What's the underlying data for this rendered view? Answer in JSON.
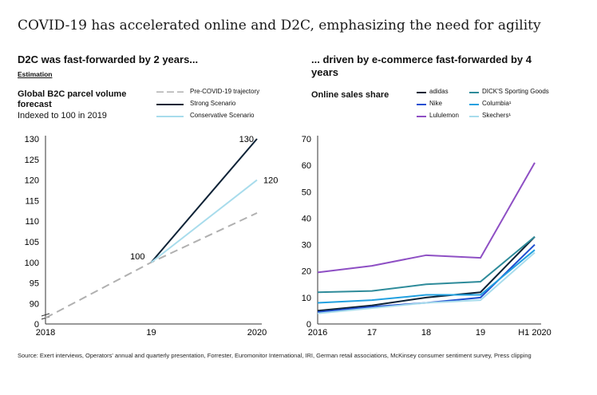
{
  "title": "COVID-19 has accelerated online and D2C, emphasizing the need for agility",
  "source": "Source: Exert interviews, Operators' annual and quarterly presentation, Forrester, Euromonitor International, IRI, German retail associations, McKinsey consumer sentiment survey, Press clipping",
  "left": {
    "heading": "D2C was fast-forwarded by 2 years...",
    "estimation": "Estimation",
    "chart_title": "Global B2C parcel volume forecast",
    "chart_note": "Indexed to 100 in 2019",
    "legend": [
      {
        "label": "Pre-COVID-19 trajectory",
        "color": "#b0b0b0",
        "style": "dashed"
      },
      {
        "label": "Strong Scenario",
        "color": "#0d2236",
        "style": "solid"
      },
      {
        "label": "Conservative Scenario",
        "color": "#a8dcec",
        "style": "solid"
      }
    ]
  },
  "right": {
    "heading": "... driven by e-commerce fast-forwarded by 4 years",
    "chart_title": "Online sales share",
    "legend": [
      {
        "label": "adidas",
        "color": "#0d2236"
      },
      {
        "label": "DICK'S Sporting Goods",
        "color": "#2e8b9a"
      },
      {
        "label": "Nike",
        "color": "#1f4fd1"
      },
      {
        "label": "Columbia¹",
        "color": "#21a0e0"
      },
      {
        "label": "Lululemon",
        "color": "#8e4fc4"
      },
      {
        "label": "Skechers¹",
        "color": "#a8dcec"
      }
    ]
  },
  "chart_data": [
    {
      "type": "line",
      "title": "Global B2C parcel volume forecast",
      "subtitle": "Indexed to 100 in 2019",
      "x": [
        "2018",
        "19",
        "2020"
      ],
      "y_ticks": [
        0,
        90,
        95,
        100,
        105,
        110,
        115,
        120,
        125,
        130
      ],
      "axis_break": true,
      "ylim": [
        86,
        130
      ],
      "series": [
        {
          "name": "Pre-COVID-19 trajectory",
          "values": [
            86.5,
            100,
            112
          ],
          "color": "#b0b0b0",
          "dash": true
        },
        {
          "name": "Strong Scenario",
          "values": [
            null,
            100,
            130
          ],
          "color": "#0d2236"
        },
        {
          "name": "Conservative Scenario",
          "values": [
            null,
            100,
            120
          ],
          "color": "#a8dcec"
        }
      ],
      "data_labels": [
        {
          "text": "100",
          "x": "19",
          "y": 100
        },
        {
          "text": "130",
          "x": "2020",
          "y": 130
        },
        {
          "text": "120",
          "x": "2020",
          "y": 120
        }
      ],
      "legend_position": "top-right"
    },
    {
      "type": "line",
      "title": "Online sales share",
      "x": [
        "2016",
        "17",
        "18",
        "19",
        "H1 2020"
      ],
      "ylim": [
        0,
        70
      ],
      "y_ticks": [
        0,
        10,
        20,
        30,
        40,
        50,
        60,
        70
      ],
      "series": [
        {
          "name": "adidas",
          "values": [
            5,
            7,
            10,
            12,
            33
          ],
          "color": "#0d2236"
        },
        {
          "name": "DICK'S Sporting Goods",
          "values": [
            12,
            12.5,
            15,
            16,
            33
          ],
          "color": "#2e8b9a"
        },
        {
          "name": "Nike",
          "values": [
            4.5,
            6.5,
            8,
            10,
            30
          ],
          "color": "#1f4fd1"
        },
        {
          "name": "Columbia¹",
          "values": [
            8,
            9,
            11,
            11,
            28
          ],
          "color": "#21a0e0"
        },
        {
          "name": "Lululemon",
          "values": [
            19.5,
            22,
            26,
            25,
            61
          ],
          "color": "#8e4fc4"
        },
        {
          "name": "Skechers¹",
          "values": [
            4,
            6,
            8,
            9,
            27
          ],
          "color": "#a8dcec"
        }
      ],
      "legend_position": "top-right"
    }
  ]
}
